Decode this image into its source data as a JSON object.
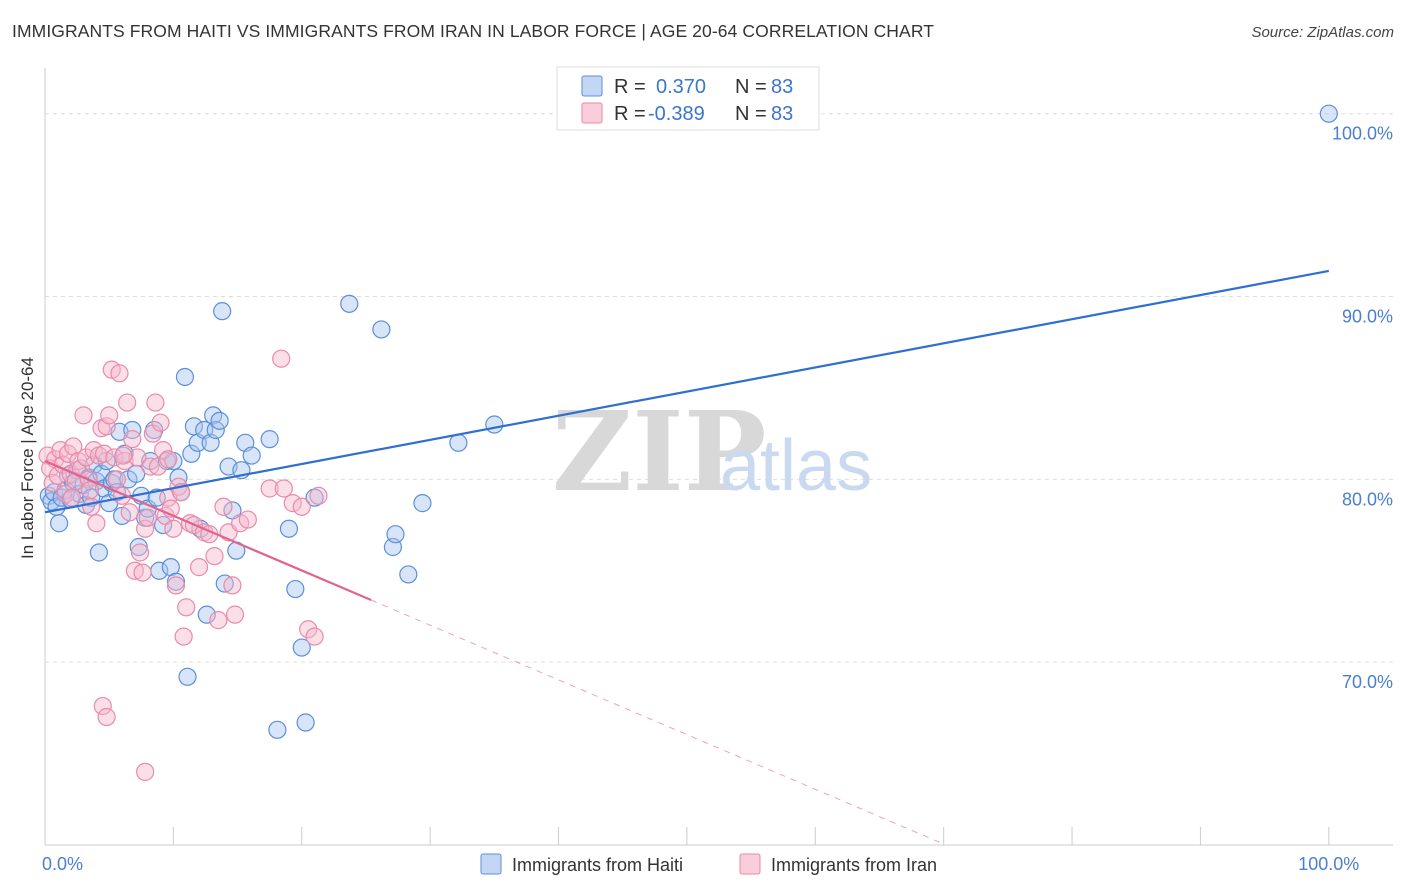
{
  "title": "IMMIGRANTS FROM HAITI VS IMMIGRANTS FROM IRAN IN LABOR FORCE | AGE 20-64 CORRELATION CHART",
  "source": "Source: ZipAtlas.com",
  "watermark": {
    "zip": "ZIP",
    "atlas": "atlas"
  },
  "colors": {
    "haiti_fill": "#a9c6ef",
    "haiti_stroke": "#5b8fd9",
    "haiti_line": "#2f6fd1",
    "iran_fill": "#f6b8cb",
    "iran_stroke": "#e98aa9",
    "iran_line": "#e0648e",
    "tick_label": "#4a7fd0",
    "grid": "#dddddd"
  },
  "legend": {
    "rows": [
      {
        "r_label": "R =",
        "r_value": "0.370",
        "n_label": "N =",
        "n_value": "83"
      },
      {
        "r_label": "R =",
        "r_value": "-0.389",
        "n_label": "N =",
        "n_value": "83"
      }
    ]
  },
  "bottom_legend": [
    "Immigrants from Haiti",
    "Immigrants from Iran"
  ],
  "chart_data": {
    "type": "scatter",
    "title": "IMMIGRANTS FROM HAITI VS IMMIGRANTS FROM IRAN IN LABOR FORCE | AGE 20-64 CORRELATION CHART",
    "xlabel": "",
    "ylabel": "In Labor Force | Age 20-64",
    "xlim": [
      0,
      105
    ],
    "ylim": [
      60,
      102.5
    ],
    "x_tick_labels": [
      {
        "value": 0,
        "label": "0.0%"
      },
      {
        "value": 100,
        "label": "100.0%"
      }
    ],
    "y_ticks": [
      {
        "value": 70,
        "label": "70.0%"
      },
      {
        "value": 80,
        "label": "80.0%"
      },
      {
        "value": 90,
        "label": "90.0%"
      },
      {
        "value": 100,
        "label": "100.0%"
      }
    ],
    "grid": true,
    "legend_position": "top-center",
    "series": [
      {
        "name": "Immigrants from Haiti",
        "R": 0.37,
        "N": 83,
        "trend": {
          "x": [
            0,
            100
          ],
          "y": [
            78.2,
            91.4
          ],
          "dashed_x": null
        },
        "points": [
          [
            0.3,
            79.1
          ],
          [
            0.5,
            78.8
          ],
          [
            0.7,
            79.3
          ],
          [
            0.9,
            78.5
          ],
          [
            1.1,
            77.6
          ],
          [
            1.3,
            79.0
          ],
          [
            1.6,
            79.4
          ],
          [
            1.8,
            80.2
          ],
          [
            2.0,
            78.9
          ],
          [
            2.2,
            79.8
          ],
          [
            2.5,
            80.5
          ],
          [
            2.7,
            79.2
          ],
          [
            3.0,
            79.7
          ],
          [
            3.2,
            78.6
          ],
          [
            3.4,
            80.1
          ],
          [
            3.6,
            79.0
          ],
          [
            3.8,
            80.8
          ],
          [
            4.0,
            79.9
          ],
          [
            4.2,
            76.0
          ],
          [
            4.4,
            80.3
          ],
          [
            4.6,
            79.5
          ],
          [
            4.8,
            81.0
          ],
          [
            5.0,
            78.7
          ],
          [
            5.2,
            79.8
          ],
          [
            5.4,
            80.0
          ],
          [
            5.6,
            79.3
          ],
          [
            5.8,
            82.6
          ],
          [
            6.0,
            78.0
          ],
          [
            6.2,
            81.4
          ],
          [
            6.5,
            80.0
          ],
          [
            6.8,
            82.7
          ],
          [
            7.1,
            80.3
          ],
          [
            7.3,
            76.3
          ],
          [
            7.5,
            79.1
          ],
          [
            7.8,
            77.9
          ],
          [
            8.0,
            78.4
          ],
          [
            8.2,
            81.0
          ],
          [
            8.5,
            82.7
          ],
          [
            8.7,
            79.0
          ],
          [
            8.9,
            75.0
          ],
          [
            9.2,
            77.5
          ],
          [
            9.5,
            81.0
          ],
          [
            9.8,
            75.2
          ],
          [
            10.0,
            81.0
          ],
          [
            10.2,
            74.4
          ],
          [
            10.4,
            80.1
          ],
          [
            10.6,
            79.3
          ],
          [
            10.9,
            85.6
          ],
          [
            11.1,
            69.2
          ],
          [
            11.4,
            81.4
          ],
          [
            11.6,
            82.9
          ],
          [
            11.9,
            82.0
          ],
          [
            12.1,
            77.3
          ],
          [
            12.4,
            82.7
          ],
          [
            12.6,
            72.6
          ],
          [
            12.9,
            82.0
          ],
          [
            13.1,
            83.5
          ],
          [
            13.3,
            82.7
          ],
          [
            13.6,
            83.2
          ],
          [
            13.8,
            89.2
          ],
          [
            14.0,
            74.3
          ],
          [
            14.3,
            80.7
          ],
          [
            14.6,
            78.3
          ],
          [
            14.9,
            76.1
          ],
          [
            15.3,
            80.5
          ],
          [
            15.6,
            82.0
          ],
          [
            16.1,
            81.3
          ],
          [
            17.5,
            82.2
          ],
          [
            18.1,
            66.3
          ],
          [
            19.0,
            77.3
          ],
          [
            19.5,
            74.0
          ],
          [
            20.0,
            70.8
          ],
          [
            20.3,
            66.7
          ],
          [
            21.0,
            79.0
          ],
          [
            23.7,
            89.6
          ],
          [
            26.2,
            88.2
          ],
          [
            27.1,
            76.3
          ],
          [
            27.3,
            77.0
          ],
          [
            28.3,
            74.8
          ],
          [
            29.4,
            78.7
          ],
          [
            32.2,
            82.0
          ],
          [
            35.0,
            83.0
          ],
          [
            100.0,
            100.0
          ]
        ]
      },
      {
        "name": "Immigrants from Iran",
        "R": -0.389,
        "N": 83,
        "trend": {
          "x": [
            0,
            25.4
          ],
          "y": [
            81.0,
            73.4
          ],
          "dashed_x": [
            25.4,
            70.0
          ]
        },
        "points": [
          [
            0.2,
            81.3
          ],
          [
            0.4,
            80.6
          ],
          [
            0.6,
            79.8
          ],
          [
            0.8,
            81.1
          ],
          [
            1.0,
            80.2
          ],
          [
            1.2,
            81.6
          ],
          [
            1.4,
            80.8
          ],
          [
            1.6,
            79.2
          ],
          [
            1.8,
            81.4
          ],
          [
            2.0,
            80.3
          ],
          [
            2.2,
            81.8
          ],
          [
            2.4,
            79.9
          ],
          [
            2.6,
            81.0
          ],
          [
            2.8,
            80.6
          ],
          [
            3.0,
            83.5
          ],
          [
            3.2,
            81.2
          ],
          [
            3.4,
            80.0
          ],
          [
            3.6,
            78.5
          ],
          [
            3.8,
            81.6
          ],
          [
            4.0,
            77.6
          ],
          [
            4.2,
            81.3
          ],
          [
            4.4,
            82.8
          ],
          [
            4.6,
            81.4
          ],
          [
            4.8,
            82.9
          ],
          [
            5.0,
            83.5
          ],
          [
            5.2,
            86.0
          ],
          [
            5.4,
            81.2
          ],
          [
            5.6,
            80.0
          ],
          [
            5.8,
            85.8
          ],
          [
            6.0,
            79.1
          ],
          [
            6.2,
            81.0
          ],
          [
            6.4,
            84.2
          ],
          [
            6.6,
            78.2
          ],
          [
            6.8,
            82.2
          ],
          [
            7.0,
            75.0
          ],
          [
            7.2,
            81.2
          ],
          [
            7.4,
            76.0
          ],
          [
            7.6,
            74.9
          ],
          [
            7.8,
            77.3
          ],
          [
            8.0,
            77.9
          ],
          [
            8.2,
            80.7
          ],
          [
            8.4,
            82.5
          ],
          [
            8.6,
            84.2
          ],
          [
            8.8,
            80.7
          ],
          [
            9.0,
            83.1
          ],
          [
            9.2,
            81.6
          ],
          [
            9.4,
            78.0
          ],
          [
            9.6,
            79.0
          ],
          [
            9.8,
            78.4
          ],
          [
            10.0,
            77.3
          ],
          [
            10.2,
            74.2
          ],
          [
            10.4,
            79.6
          ],
          [
            10.6,
            79.3
          ],
          [
            10.8,
            71.4
          ],
          [
            11.0,
            73.0
          ],
          [
            11.3,
            77.6
          ],
          [
            11.6,
            77.5
          ],
          [
            12.0,
            75.2
          ],
          [
            12.4,
            77.1
          ],
          [
            12.8,
            77.0
          ],
          [
            13.2,
            75.8
          ],
          [
            13.5,
            72.3
          ],
          [
            13.9,
            78.5
          ],
          [
            14.3,
            77.1
          ],
          [
            14.6,
            74.2
          ],
          [
            14.8,
            72.6
          ],
          [
            15.2,
            77.6
          ],
          [
            15.8,
            77.8
          ],
          [
            17.5,
            79.5
          ],
          [
            18.4,
            86.6
          ],
          [
            18.6,
            79.5
          ],
          [
            19.3,
            78.7
          ],
          [
            20.0,
            78.5
          ],
          [
            20.5,
            71.8
          ],
          [
            21.0,
            71.4
          ],
          [
            21.3,
            79.1
          ],
          [
            4.5,
            67.6
          ],
          [
            4.8,
            67.0
          ],
          [
            7.8,
            64.0
          ],
          [
            3.5,
            79.4
          ],
          [
            2.1,
            79.0
          ],
          [
            6.1,
            81.3
          ],
          [
            9.6,
            81.1
          ]
        ]
      }
    ]
  }
}
